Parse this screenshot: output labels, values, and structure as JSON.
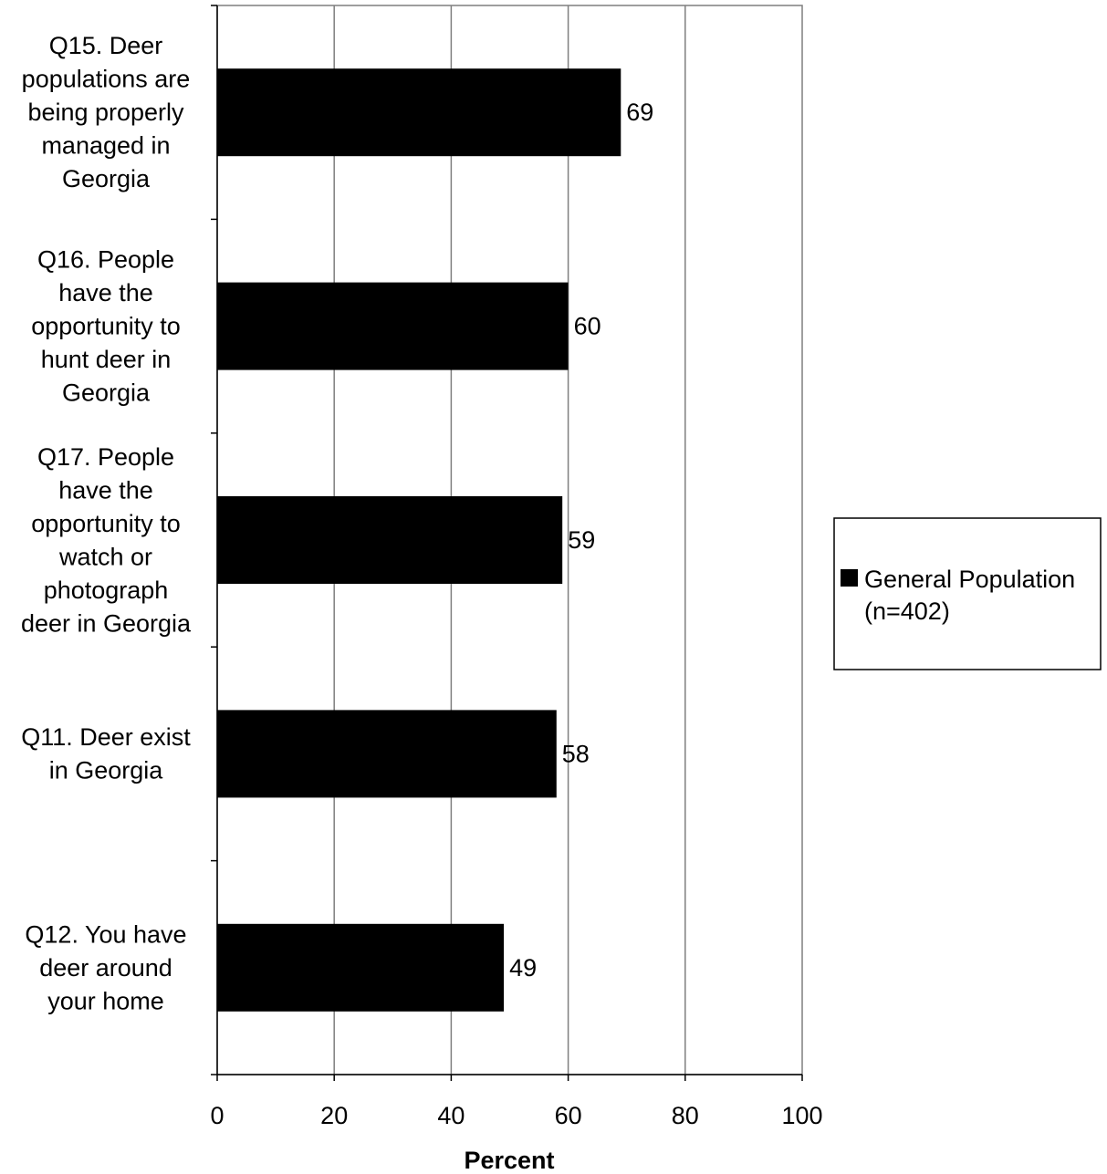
{
  "chart_data": {
    "type": "bar",
    "orientation": "horizontal",
    "categories": [
      [
        "Q15. Deer",
        "populations are",
        "being properly",
        "managed in",
        "Georgia"
      ],
      [
        "Q16. People",
        "have the",
        "opportunity to",
        "hunt deer in",
        "Georgia"
      ],
      [
        "Q17. People",
        "have the",
        "opportunity to",
        "watch or",
        "photograph",
        "deer in Georgia"
      ],
      [
        "Q11. Deer exist",
        "in Georgia"
      ],
      [
        "Q12. You have",
        "deer around",
        "your home"
      ]
    ],
    "series": [
      {
        "name": [
          "General Population",
          "(n=402)"
        ],
        "values": [
          69,
          60,
          59,
          58,
          49
        ],
        "color": "#000000"
      }
    ],
    "data_labels": [
      "69",
      "60",
      "59",
      "58",
      "49"
    ],
    "xlabel": "Percent",
    "xlim": [
      0,
      100
    ],
    "xticks": [
      "0",
      "20",
      "40",
      "60",
      "80",
      "100"
    ],
    "grid": "vertical",
    "legend_position": "right"
  }
}
